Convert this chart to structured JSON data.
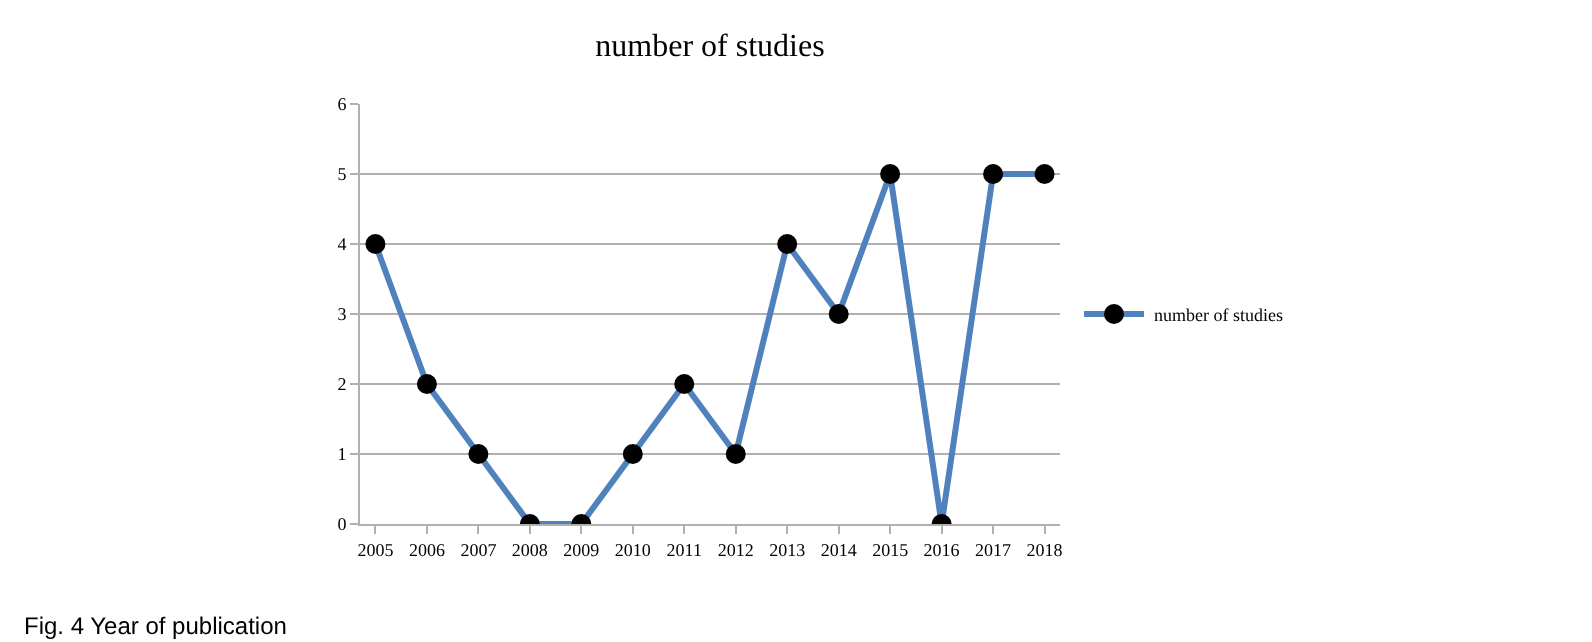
{
  "chart_data": {
    "type": "line",
    "title": "number of studies",
    "categories": [
      "2005",
      "2006",
      "2007",
      "2008",
      "2009",
      "2010",
      "2011",
      "2012",
      "2013",
      "2014",
      "2015",
      "2016",
      "2017",
      "2018"
    ],
    "series": [
      {
        "name": "number of studies",
        "color": "#4f81bd",
        "values": [
          4,
          2,
          1,
          0,
          0,
          1,
          2,
          1,
          4,
          3,
          5,
          0,
          5,
          5
        ]
      }
    ],
    "ylim": [
      0,
      6
    ],
    "yticks": [
      0,
      1,
      2,
      3,
      4,
      5,
      6
    ],
    "grid": "y",
    "legend": "right",
    "marker": "circle",
    "line_style": "solid",
    "annotations": [
      "Fig. 4 Year of publication"
    ]
  }
}
